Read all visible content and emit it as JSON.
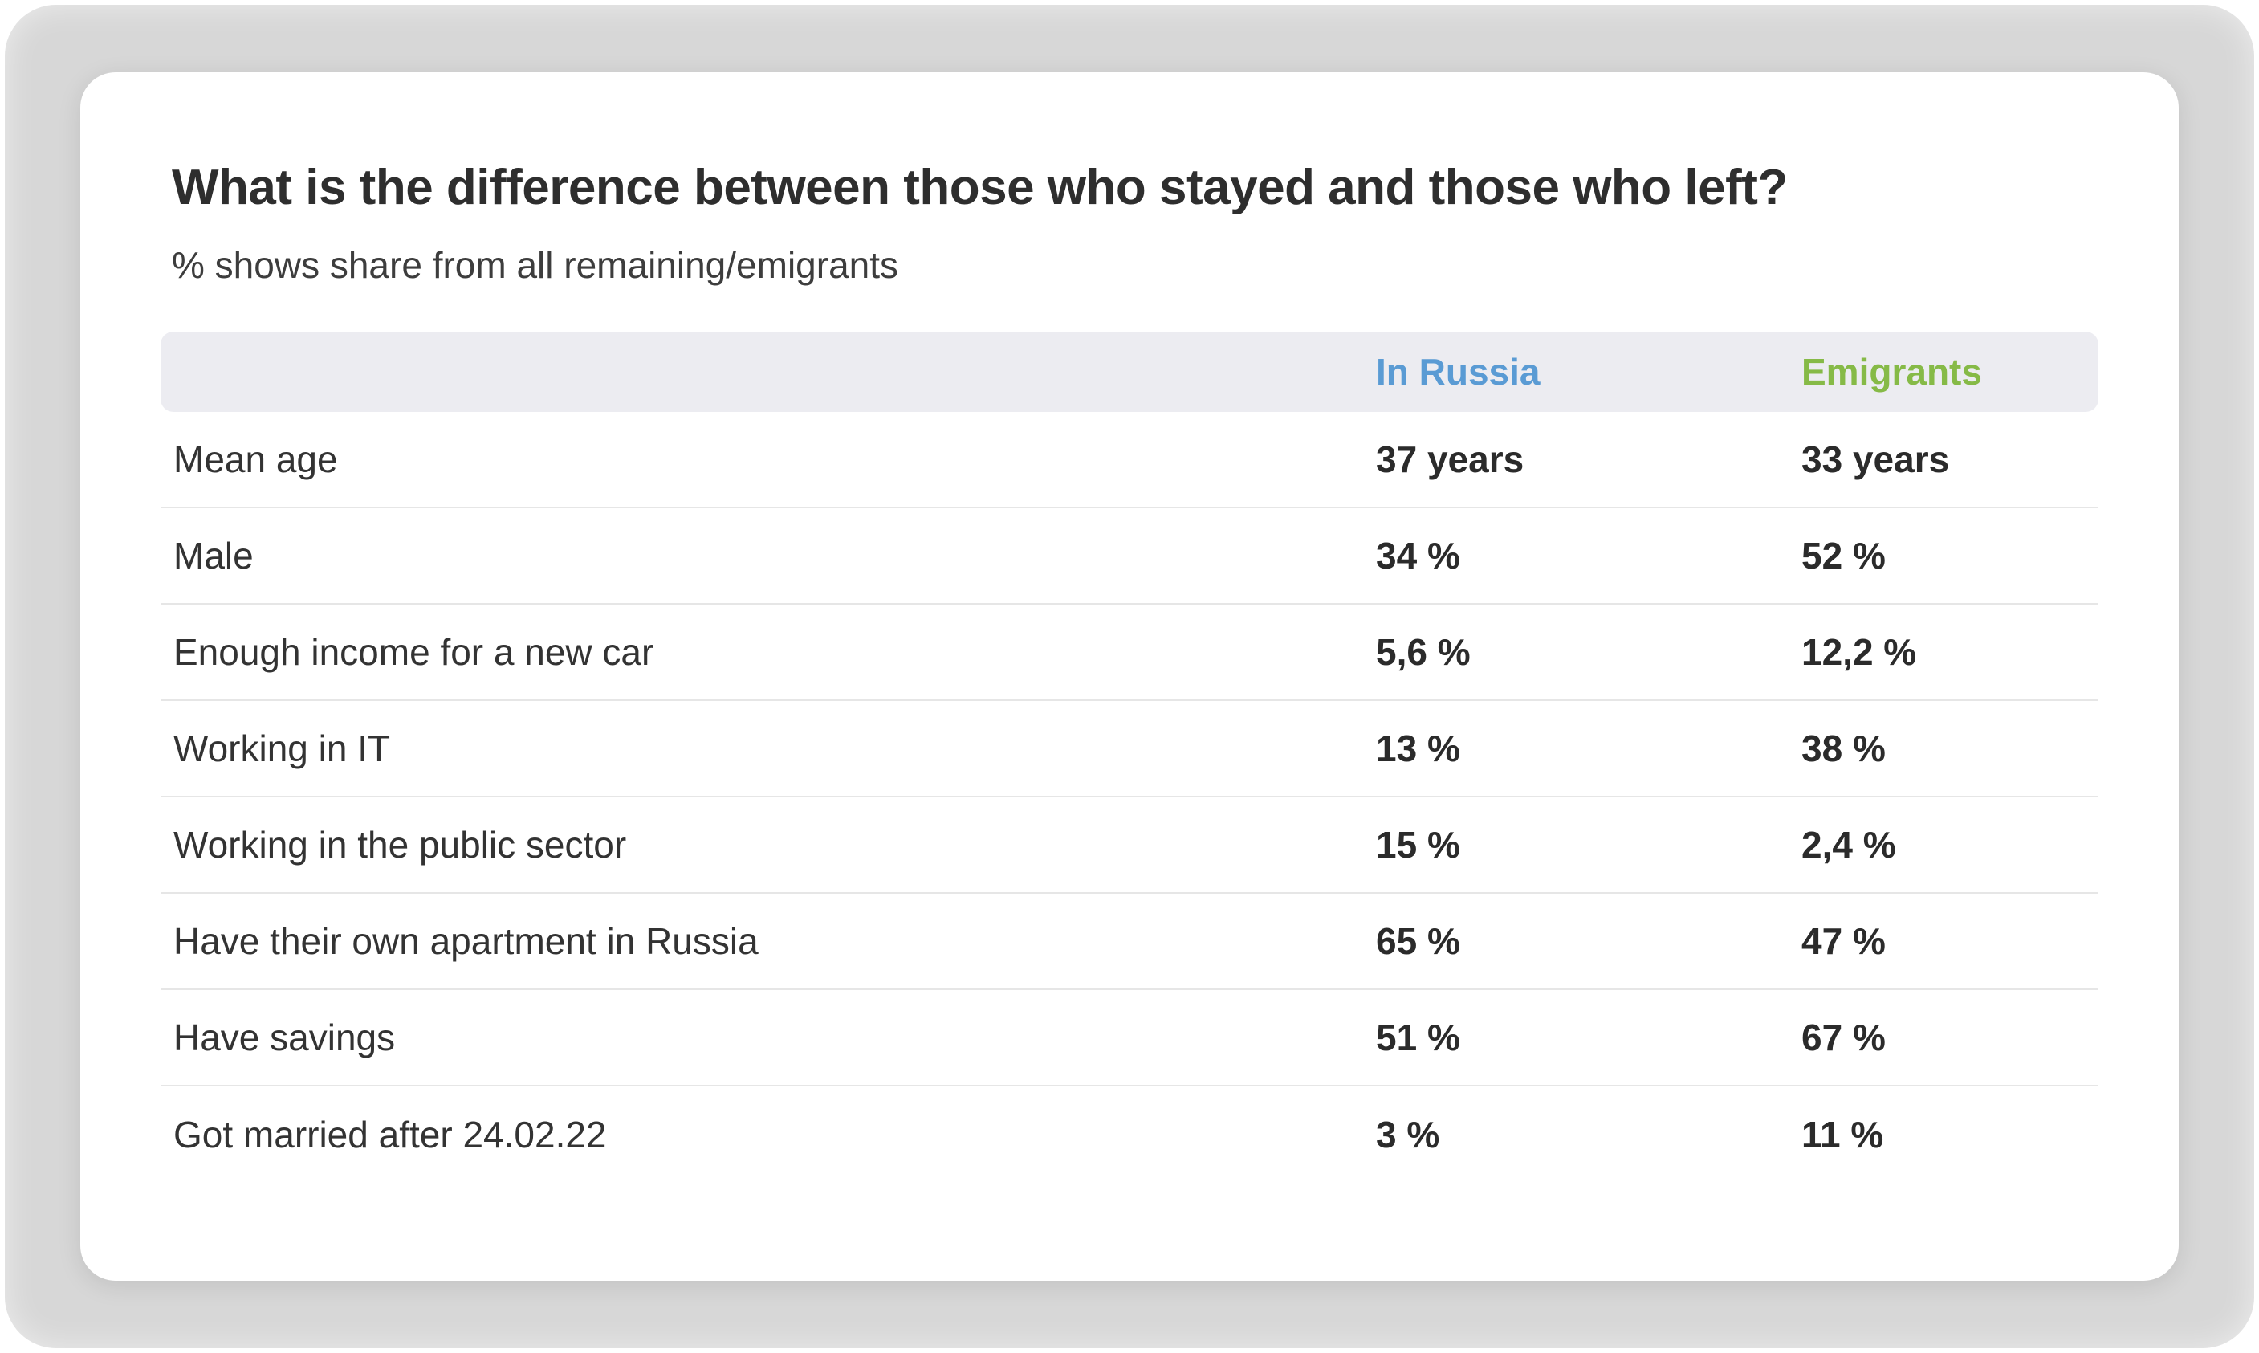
{
  "page": {
    "title": "What is the difference between those who stayed and those who left?",
    "subtitle": "% shows share from all remaining/emigrants"
  },
  "colors": {
    "in_russia_header": "#5a9bd4",
    "emigrants_header": "#86ba47",
    "header_band_background": "#ececf1",
    "card_background": "#ffffff",
    "page_background": "#d7d7d7"
  },
  "chart_data": {
    "type": "table",
    "title": "What is the difference between those who stayed and those who left?",
    "subtitle": "% shows share from all remaining/emigrants",
    "columns": [
      "",
      "In Russia",
      "Emigrants"
    ],
    "rows": [
      [
        "Mean age",
        "37 years",
        "33 years"
      ],
      [
        "Male",
        "34 %",
        "52 %"
      ],
      [
        "Enough income for a new car",
        "5,6 %",
        "12,2 %"
      ],
      [
        "Working in IT",
        "13 %",
        "38 %"
      ],
      [
        "Working in the public sector",
        "15 %",
        "2,4 %"
      ],
      [
        "Have their own apartment in Russia",
        "65 %",
        "47 %"
      ],
      [
        "Have savings",
        "51 %",
        "67 %"
      ],
      [
        "Got married after 24.02.22",
        "3 %",
        "11 %"
      ]
    ],
    "legend_position": "none",
    "grid": "horizontal-separators"
  }
}
